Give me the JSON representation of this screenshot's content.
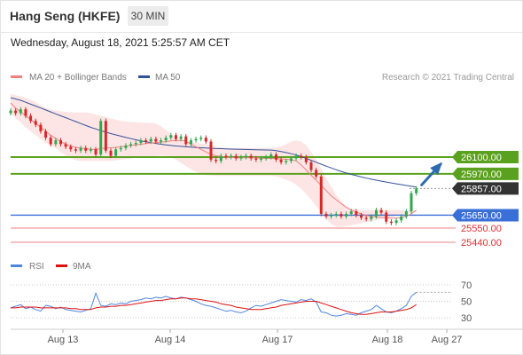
{
  "header": {
    "title": "Hang Seng (HKFE)",
    "timeframe": "30 MIN",
    "datetime": "Wednesday, August 18, 2021 5:25:57 AM CET"
  },
  "legend": {
    "ma20_bollinger": "MA 20 + Bollinger Bands",
    "ma50": "MA 50",
    "credit": "Research © 2021 Trading Central",
    "rsi": "RSI",
    "ma9": "9MA"
  },
  "colors": {
    "resistance": "#5aa11e",
    "support_blue": "#3a6fd8",
    "support_red": "#f08080",
    "current": "#333333",
    "ma20": "#f08080",
    "ma50": "#33529b",
    "bollinger_fill": "#fcdcdc",
    "rsi": "#4f86e0",
    "rsi_ma": "#e01010",
    "candle_up": "#2fa84f",
    "candle_down": "#d62828",
    "arrow": "#2d6ab0"
  },
  "chart_data": [
    {
      "type": "candlestick",
      "title": "Hang Seng (HKFE)",
      "timeframe": "30 MIN",
      "x_ticks": [
        "Aug 13",
        "Aug 14",
        "Aug 17",
        "Aug 18",
        "Aug 27"
      ],
      "price_levels": [
        {
          "label": "26100.00",
          "value": 26100,
          "kind": "resistance"
        },
        {
          "label": "25970.00",
          "value": 25970,
          "kind": "resistance"
        },
        {
          "label": "25857.00",
          "value": 25857,
          "kind": "current"
        },
        {
          "label": "25650.00",
          "value": 25650,
          "kind": "pivot"
        },
        {
          "label": "25550.00",
          "value": 25550,
          "kind": "support"
        },
        {
          "label": "25440.00",
          "value": 25440,
          "kind": "support"
        }
      ],
      "ylim": [
        25440,
        26100
      ],
      "close": [
        26460,
        26440,
        26470,
        26420,
        26380,
        26350,
        26300,
        26250,
        26200,
        26230,
        26200,
        26180,
        26160,
        26150,
        26170,
        26150,
        26160,
        26120,
        26380,
        26150,
        26110,
        26160,
        26170,
        26190,
        26200,
        26210,
        26230,
        26220,
        26240,
        26220,
        26230,
        26250,
        26270,
        26240,
        26260,
        26200,
        26230,
        26240,
        26250,
        26220,
        26080,
        26070,
        26110,
        26100,
        26110,
        26090,
        26100,
        26110,
        26090,
        26080,
        26090,
        26100,
        26120,
        26080,
        26060,
        26070,
        26090,
        26110,
        26100,
        26060,
        26000,
        25950,
        25660,
        25640,
        25650,
        25660,
        25640,
        25660,
        25680,
        25650,
        25630,
        25620,
        25640,
        25690,
        25670,
        25600,
        25590,
        25610,
        25640,
        25680,
        25820,
        25857
      ],
      "ma20": [
        26520,
        26480,
        26450,
        26420,
        26390,
        26360,
        26330,
        26300,
        26270,
        26245,
        26220,
        26200,
        26185,
        26175,
        26170,
        26165,
        26160,
        26160,
        26165,
        26170,
        26172,
        26175,
        26180,
        26185,
        26190,
        26195,
        26200,
        26205,
        26210,
        26212,
        26215,
        26220,
        26225,
        26228,
        26230,
        26225,
        26200,
        26180,
        26160,
        26140,
        26120,
        26110,
        26105,
        26100,
        26097,
        26095,
        26095,
        26095,
        26095,
        26095,
        26092,
        26090,
        26090,
        26088,
        26086,
        26083,
        26080,
        26070,
        26040,
        26000,
        25960,
        25920,
        25880,
        25840,
        25800,
        25770,
        25740,
        25710,
        25690,
        25675,
        25660,
        25648,
        25640,
        25635,
        25632,
        25630,
        25628,
        25628,
        25630,
        25640,
        25660,
        25690
      ],
      "ma50": [
        26560,
        26550,
        26540,
        26525,
        26510,
        26495,
        26480,
        26465,
        26450,
        26435,
        26420,
        26405,
        26390,
        26375,
        26360,
        26345,
        26330,
        26318,
        26305,
        26293,
        26282,
        26272,
        26262,
        26252,
        26243,
        26234,
        26226,
        26219,
        26212,
        26206,
        26200,
        26195,
        26190,
        26186,
        26183,
        26180,
        26177,
        26174,
        26172,
        26170,
        26168,
        26166,
        26165,
        26163,
        26162,
        26161,
        26160,
        26159,
        26158,
        26157,
        26156,
        26155,
        26154,
        26150,
        26143,
        26135,
        26126,
        26116,
        26104,
        26090,
        26075,
        26060,
        26045,
        26030,
        26016,
        26002,
        25989,
        25977,
        25966,
        25956,
        25946,
        25937,
        25929,
        25921,
        25914,
        25907,
        25900,
        25893,
        25887,
        25880,
        25874,
        25868
      ],
      "bollinger_upper": [
        26590,
        26580,
        26570,
        26560,
        26545,
        26525,
        26500,
        26480,
        26470,
        26460,
        26455,
        26450,
        26448,
        26445,
        26445,
        26445,
        26440,
        26430,
        26420,
        26410,
        26400,
        26390,
        26380,
        26375,
        26372,
        26370,
        26368,
        26366,
        26365,
        26360,
        26340,
        26310,
        26280,
        26250,
        26230,
        26220,
        26215,
        26210,
        26205,
        26200,
        26190,
        26180,
        26175,
        26170,
        26170,
        26170,
        26170,
        26170,
        26170,
        26170,
        26170,
        26170,
        26170,
        26175,
        26185,
        26200,
        26220,
        26230,
        26220,
        26190,
        26140,
        26080,
        26010,
        25940,
        25870,
        25810,
        25760,
        25720,
        25700,
        25690,
        25690,
        25690,
        25690,
        25690,
        25690,
        25690,
        25690,
        25690,
        25690,
        25690,
        25690,
        25690
      ],
      "bollinger_lower": [
        26440,
        26400,
        26370,
        26330,
        26300,
        26270,
        26240,
        26210,
        26190,
        26170,
        26140,
        26110,
        26090,
        26075,
        26070,
        26070,
        26070,
        26070,
        26070,
        26070,
        26070,
        26075,
        26080,
        26085,
        26090,
        26095,
        26100,
        26102,
        26105,
        26108,
        26110,
        26108,
        26100,
        26080,
        26055,
        26030,
        26005,
        25985,
        25970,
        25962,
        25958,
        25955,
        25955,
        25955,
        25955,
        25955,
        25955,
        25955,
        25955,
        25955,
        25955,
        25955,
        25955,
        25950,
        25940,
        25925,
        25910,
        25885,
        25855,
        25815,
        25770,
        25720,
        25670,
        25620,
        25580,
        25560,
        25560,
        25565,
        25572,
        25580,
        25588,
        25596,
        25604,
        25612,
        25620,
        25628,
        25636,
        25644,
        25652,
        25660,
        25668,
        25676
      ]
    },
    {
      "type": "line",
      "title": "RSI",
      "ylim": [
        20,
        80
      ],
      "y_ticks": [
        70,
        50,
        30
      ],
      "series": [
        {
          "name": "RSI",
          "values": [
            42,
            44,
            46,
            41,
            43,
            40,
            38,
            45,
            44,
            41,
            43,
            40,
            39,
            38,
            37,
            39,
            41,
            60,
            45,
            44,
            47,
            46,
            48,
            47,
            50,
            51,
            52,
            54,
            53,
            55,
            54,
            56,
            54,
            53,
            55,
            54,
            52,
            50,
            47,
            45,
            44,
            42,
            40,
            38,
            39,
            37,
            36,
            38,
            42,
            45,
            44,
            46,
            48,
            50,
            52,
            51,
            50,
            49,
            52,
            51,
            53,
            49,
            37,
            36,
            33,
            32,
            33,
            35,
            34,
            33,
            36,
            38,
            40,
            45,
            41,
            37,
            36,
            38,
            41,
            45,
            56,
            61
          ]
        },
        {
          "name": "9MA",
          "values": [
            42,
            42,
            43,
            43,
            43,
            43,
            42,
            42,
            42,
            42,
            42,
            42,
            41,
            41,
            40,
            40,
            40,
            42,
            43,
            43,
            44,
            44,
            45,
            45,
            46,
            47,
            48,
            49,
            50,
            51,
            51,
            52,
            53,
            53,
            54,
            54,
            53,
            53,
            52,
            51,
            50,
            49,
            47,
            46,
            45,
            43,
            42,
            41,
            40,
            40,
            40,
            41,
            42,
            43,
            45,
            46,
            47,
            48,
            49,
            50,
            50,
            50,
            48,
            46,
            44,
            42,
            40,
            38,
            36,
            35,
            34,
            34,
            35,
            36,
            37,
            37,
            37,
            38,
            39,
            40,
            42,
            46
          ]
        }
      ]
    }
  ]
}
